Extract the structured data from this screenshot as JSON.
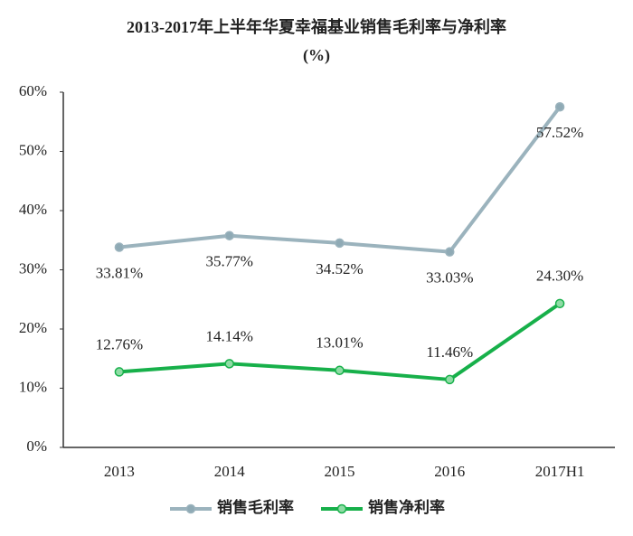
{
  "chart_data": {
    "type": "line",
    "title": "2013-2017年上半年华夏幸福基业销售毛利率与净利率",
    "subtitle": "(%)",
    "categories": [
      "2013",
      "2014",
      "2015",
      "2016",
      "2017H1"
    ],
    "series": [
      {
        "name": "销售毛利率",
        "color": "#9bb3bd",
        "marker_fill": "#8faab5",
        "values": [
          33.81,
          35.77,
          34.52,
          33.03,
          57.52
        ],
        "value_labels": [
          "33.81%",
          "35.77%",
          "34.52%",
          "33.03%",
          "57.52%"
        ],
        "label_position": "below"
      },
      {
        "name": "销售净利率",
        "color": "#17b04a",
        "marker_fill": "#8fdca5",
        "values": [
          12.76,
          14.14,
          13.01,
          11.46,
          24.3
        ],
        "value_labels": [
          "12.76%",
          "14.14%",
          "13.01%",
          "11.46%",
          "24.30%"
        ],
        "label_position": "above"
      }
    ],
    "ylim": [
      0,
      60
    ],
    "yticks": [
      {
        "value": 0,
        "label": "0%"
      },
      {
        "value": 10,
        "label": "10%"
      },
      {
        "value": 20,
        "label": "20%"
      },
      {
        "value": 30,
        "label": "30%"
      },
      {
        "value": 40,
        "label": "40%"
      },
      {
        "value": 50,
        "label": "50%"
      },
      {
        "value": 60,
        "label": "60%"
      }
    ],
    "grid": false,
    "legend": "bottom"
  }
}
